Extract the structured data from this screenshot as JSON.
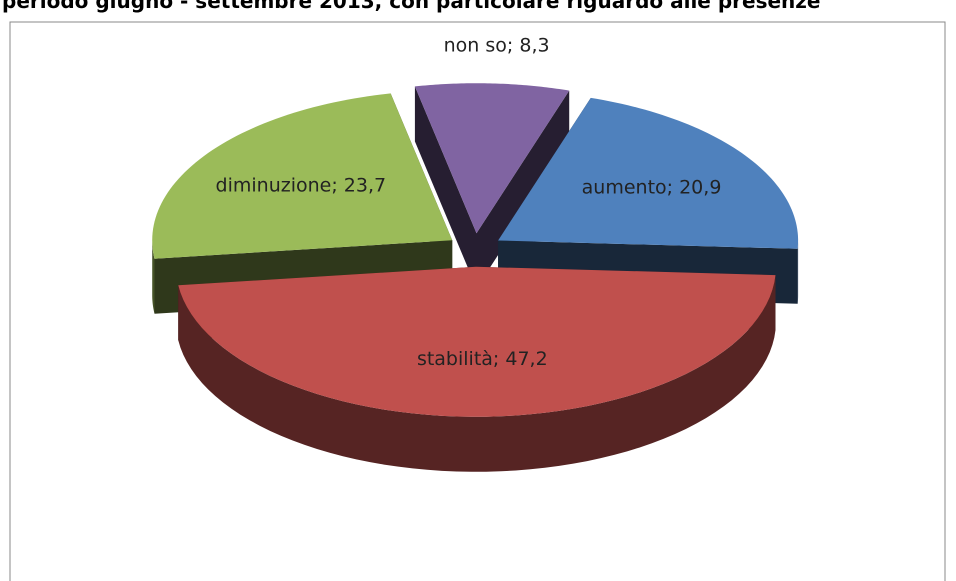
{
  "chart_data": {
    "type": "pie3d",
    "title": "periodo giugno - settembre 2013, con particolare riguardo alle presenze",
    "values": [
      20.9,
      47.2,
      23.7,
      8.3
    ],
    "value_labels": [
      "aumento; 20,9",
      "stabilità; 47,2",
      "diminuzione; 23,7",
      "non so; 8,3"
    ],
    "colors": [
      "#4f81bd",
      "#c0504d",
      "#9bbb59",
      "#8064a2"
    ]
  }
}
